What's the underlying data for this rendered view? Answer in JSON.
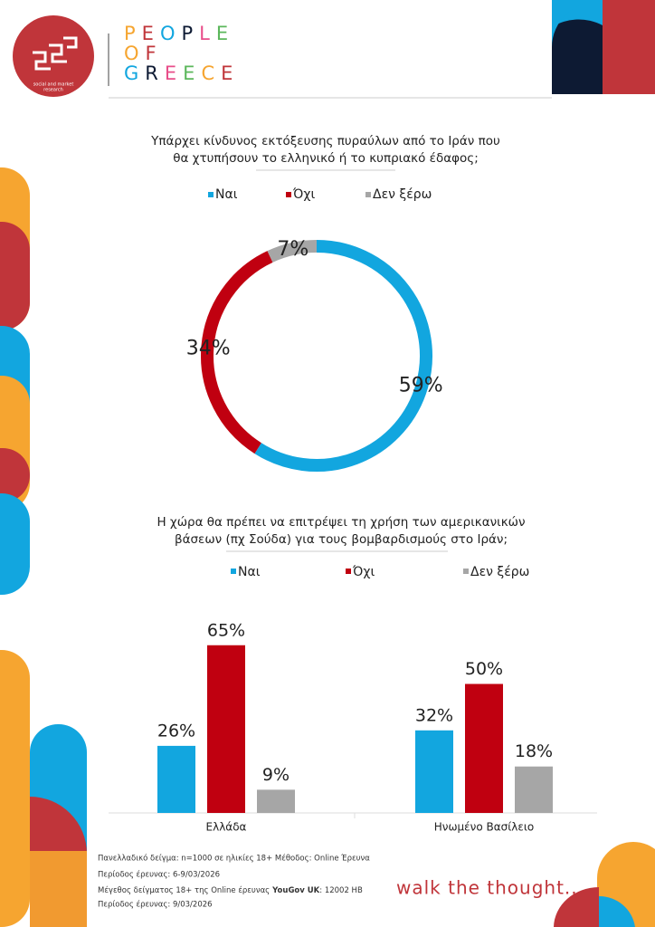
{
  "logo": {
    "lines": [
      "social and market",
      "research"
    ]
  },
  "brand": [
    "PEOPLE",
    "OF",
    "GREECE"
  ],
  "chart_data": [
    {
      "type": "donut",
      "title": [
        "Υπάρχει κίνδυνος εκτόξευσης πυραύλων από το Ιράν που",
        "θα χτυπήσουν το ελληνικό ή το κυπριακό έδαφος;"
      ],
      "categories": [
        "Ναι",
        "Όχι",
        "Δεν ξέρω"
      ],
      "values": [
        59,
        34,
        7
      ],
      "value_labels": [
        "59%",
        "34%",
        "7%"
      ],
      "colors": [
        "#12a6df",
        "#c00010",
        "#a6a6a6"
      ]
    },
    {
      "type": "bar",
      "title": [
        "Η χώρα θα πρέπει να επιτρέψει τη χρήση των αμερικανικών",
        "βάσεων (πχ Σούδα) για τους βομβαρδισμούς στο Ιράν;"
      ],
      "categories": [
        "Ελλάδα",
        "Ηνωμένο Βασίλειο"
      ],
      "series": [
        {
          "name": "Ναι",
          "color": "#12a6df",
          "values": [
            26,
            32
          ],
          "value_labels": [
            "26%",
            "32%"
          ]
        },
        {
          "name": "Όχι",
          "color": "#c00010",
          "values": [
            65,
            50
          ],
          "value_labels": [
            "65%",
            "50%"
          ]
        },
        {
          "name": "Δεν ξέρω",
          "color": "#a6a6a6",
          "values": [
            9,
            18
          ],
          "value_labels": [
            "9%",
            "18%"
          ]
        }
      ]
    }
  ],
  "footer": {
    "lines": [
      "Πανελλαδικό δείγμα: n=1000 σε ηλικίες 18+  Μέθοδος: Online Έρευνα",
      "Περίοδος έρευνας:  6-9/03/2026"
    ],
    "sample_uk": [
      "Μέγεθος δείγματος 18+ της Online έρευνας",
      "YouGov UK",
      ": 12002 HB"
    ],
    "period_uk": "Περίοδος έρευνας: 9/03/2026"
  },
  "tagline": "walk the thought..."
}
